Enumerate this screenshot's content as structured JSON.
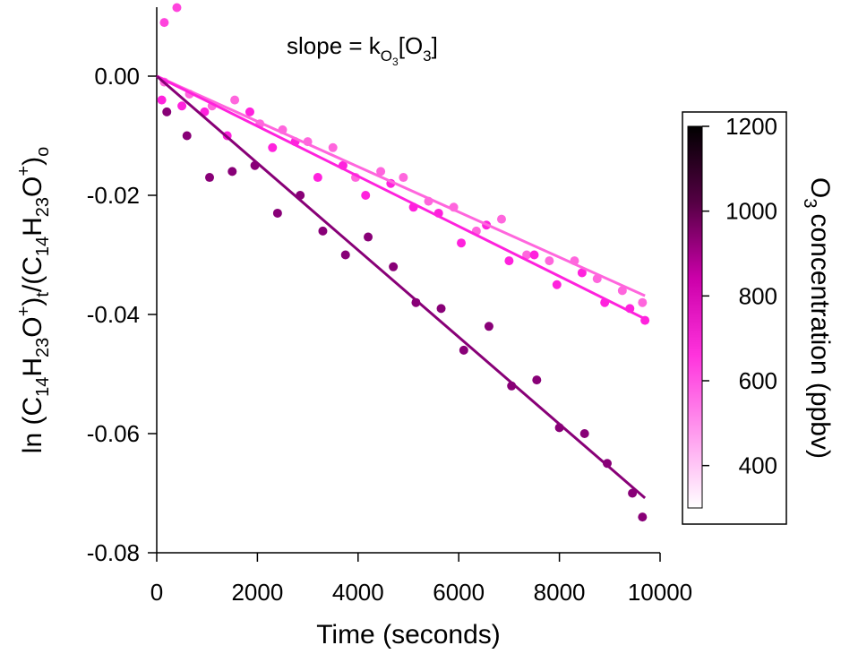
{
  "chart_data": {
    "type": "scatter",
    "title": "",
    "annotation": {
      "main": "slope = k",
      "sub1": "O",
      "sub2": "3",
      "tail1": "[O",
      "sub3": "3",
      "tail2": "]"
    },
    "xlabel": "Time (seconds)",
    "ylabel": {
      "p1": "ln (C",
      "s1": "14",
      "p2": "H",
      "s2": "23",
      "p3": "O",
      "sup1": "+",
      "p4": ")",
      "s3": "t",
      "p5": "/(C",
      "s4": "14",
      "p6": "H",
      "s5": "23",
      "p7": "O",
      "sup2": "+",
      "p8": ")",
      "s6": "o"
    },
    "xlim": [
      0,
      10000
    ],
    "ylim": [
      -0.08,
      0.012
    ],
    "xticks": [
      0,
      2000,
      4000,
      6000,
      8000,
      10000
    ],
    "yticks": [
      0.0,
      -0.02,
      -0.04,
      -0.06,
      -0.08
    ],
    "xtick_labels": [
      "0",
      "2000",
      "4000",
      "6000",
      "8000",
      "10000"
    ],
    "ytick_labels": [
      "0.00",
      "-0.02",
      "-0.04",
      "-0.06",
      "-0.08"
    ],
    "colorbar": {
      "title": "concentration (ppbv)",
      "title_prefix": "O",
      "title_sub": "3",
      "range": [
        300,
        1200
      ],
      "ticks": [
        400,
        600,
        800,
        1000,
        1200
      ],
      "tick_labels": [
        "400",
        "600",
        "800",
        "1000",
        "1200"
      ],
      "colors": [
        "#ffffff",
        "#ff99ee",
        "#ff33dd",
        "#cc00aa",
        "#550044",
        "#000000"
      ]
    },
    "series": [
      {
        "color": "#ff66dd",
        "concentration": 550,
        "slope_per_s": -3.8e-06,
        "fit_x": [
          0,
          9700
        ],
        "points": [
          [
            150,
            -0.001
          ],
          [
            650,
            -0.003
          ],
          [
            1100,
            -0.005
          ],
          [
            1550,
            -0.004
          ],
          [
            2050,
            -0.008
          ],
          [
            2500,
            -0.009
          ],
          [
            3000,
            -0.011
          ],
          [
            3500,
            -0.012
          ],
          [
            3950,
            -0.017
          ],
          [
            4450,
            -0.016
          ],
          [
            4900,
            -0.017
          ],
          [
            5400,
            -0.021
          ],
          [
            5900,
            -0.022
          ],
          [
            6350,
            -0.026
          ],
          [
            6850,
            -0.024
          ],
          [
            7350,
            -0.03
          ],
          [
            7800,
            -0.031
          ],
          [
            8300,
            -0.031
          ],
          [
            8750,
            -0.034
          ],
          [
            9250,
            -0.036
          ],
          [
            9650,
            -0.038
          ]
        ]
      },
      {
        "color": "#ff22dd",
        "concentration": 750,
        "slope_per_s": -4.2e-06,
        "fit_x": [
          0,
          9700
        ],
        "points": [
          [
            100,
            -0.004
          ],
          [
            500,
            -0.005
          ],
          [
            950,
            -0.006
          ],
          [
            1400,
            -0.01
          ],
          [
            1850,
            -0.006
          ],
          [
            2300,
            -0.012
          ],
          [
            2750,
            -0.011
          ],
          [
            3200,
            -0.017
          ],
          [
            3700,
            -0.015
          ],
          [
            4150,
            -0.02
          ],
          [
            4650,
            -0.018
          ],
          [
            5100,
            -0.022
          ],
          [
            5600,
            -0.023
          ],
          [
            6050,
            -0.028
          ],
          [
            6550,
            -0.025
          ],
          [
            7000,
            -0.031
          ],
          [
            7500,
            -0.03
          ],
          [
            7950,
            -0.035
          ],
          [
            8450,
            -0.033
          ],
          [
            8900,
            -0.038
          ],
          [
            9400,
            -0.039
          ],
          [
            9700,
            -0.041
          ]
        ]
      },
      {
        "color": "#880077",
        "concentration": 1050,
        "slope_per_s": -7.3e-06,
        "fit_x": [
          0,
          9700
        ],
        "points": [
          [
            200,
            -0.006
          ],
          [
            600,
            -0.01
          ],
          [
            1050,
            -0.017
          ],
          [
            1500,
            -0.016
          ],
          [
            1950,
            -0.015
          ],
          [
            2400,
            -0.023
          ],
          [
            2850,
            -0.02
          ],
          [
            3300,
            -0.026
          ],
          [
            3750,
            -0.03
          ],
          [
            4200,
            -0.027
          ],
          [
            4700,
            -0.032
          ],
          [
            5150,
            -0.038
          ],
          [
            5650,
            -0.039
          ],
          [
            6100,
            -0.046
          ],
          [
            6600,
            -0.042
          ],
          [
            7050,
            -0.052
          ],
          [
            7550,
            -0.051
          ],
          [
            8000,
            -0.059
          ],
          [
            8500,
            -0.06
          ],
          [
            8950,
            -0.065
          ],
          [
            9450,
            -0.07
          ],
          [
            9650,
            -0.074
          ]
        ]
      }
    ],
    "outliers": [
      [
        150,
        0.009
      ],
      [
        400,
        0.0115
      ]
    ]
  }
}
